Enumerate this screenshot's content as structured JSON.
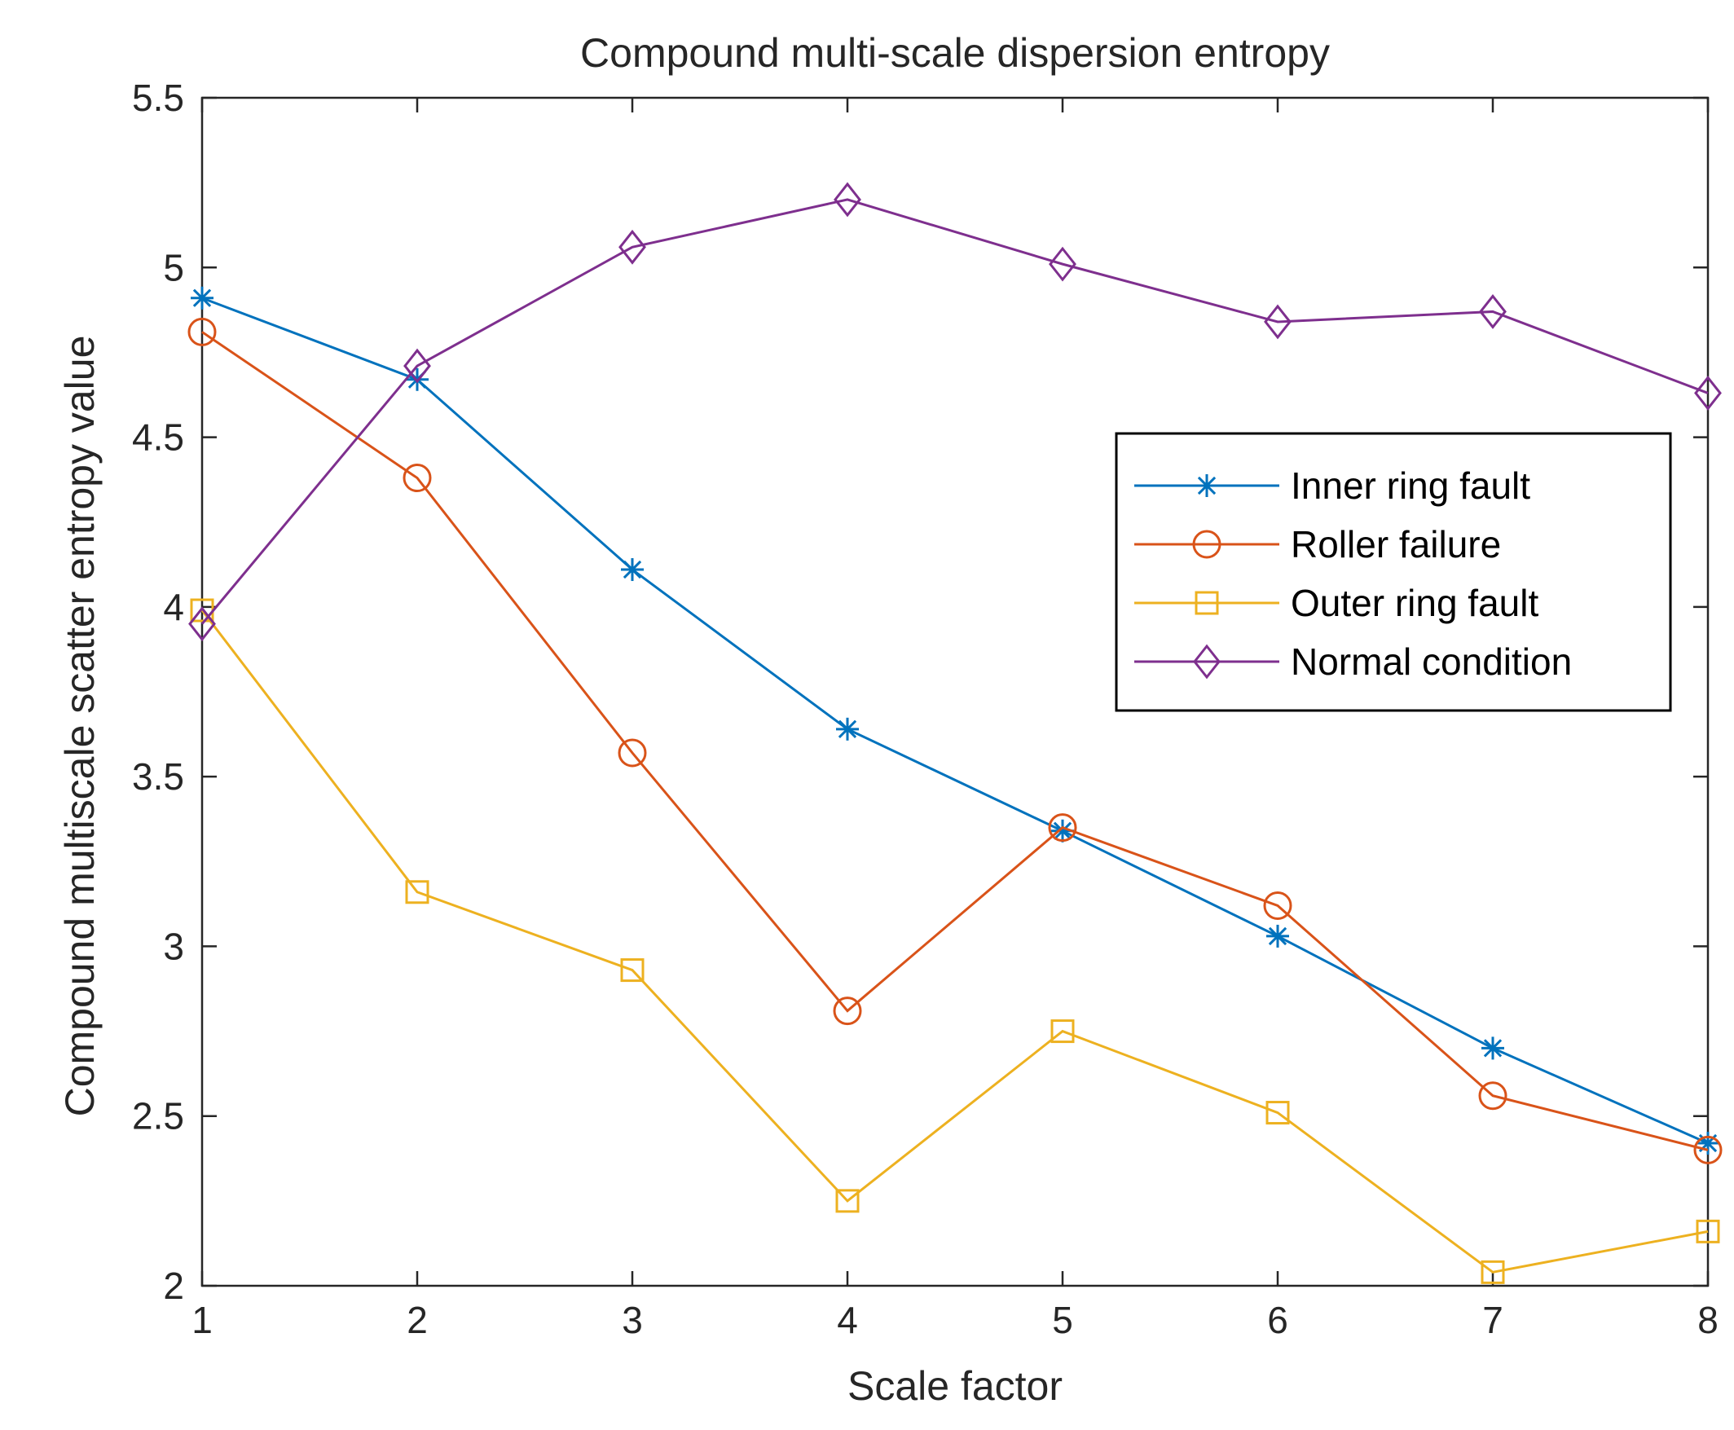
{
  "chart_data": {
    "type": "line",
    "title": "Compound multi-scale dispersion entropy",
    "xlabel": "Scale factor",
    "ylabel": "Compound multiscale scatter entropy value",
    "x": [
      1,
      2,
      3,
      4,
      5,
      6,
      7,
      8
    ],
    "xlim": [
      1,
      8
    ],
    "ylim": [
      2,
      5.5
    ],
    "xticks": [
      "1",
      "2",
      "3",
      "4",
      "5",
      "6",
      "7",
      "8"
    ],
    "yticks": [
      "2",
      "2.5",
      "3",
      "3.5",
      "4",
      "4.5",
      "5",
      "5.5"
    ],
    "grid": false,
    "legend_position": "right",
    "series": [
      {
        "name": "Inner ring fault",
        "color": "#0072BD",
        "marker": "asterisk",
        "values": [
          4.91,
          4.67,
          4.11,
          3.64,
          3.34,
          3.03,
          2.7,
          2.42
        ]
      },
      {
        "name": "Roller failure",
        "color": "#D95319",
        "marker": "circle",
        "values": [
          4.81,
          4.38,
          3.57,
          2.81,
          3.35,
          3.12,
          2.56,
          2.4
        ]
      },
      {
        "name": "Outer ring fault",
        "color": "#EDB120",
        "marker": "square",
        "values": [
          3.99,
          3.16,
          2.93,
          2.25,
          2.75,
          2.51,
          2.04,
          2.16
        ]
      },
      {
        "name": "Normal condition",
        "color": "#7E2F8E",
        "marker": "diamond",
        "values": [
          3.95,
          4.71,
          5.06,
          5.2,
          5.01,
          4.84,
          4.87,
          4.63
        ]
      }
    ]
  }
}
